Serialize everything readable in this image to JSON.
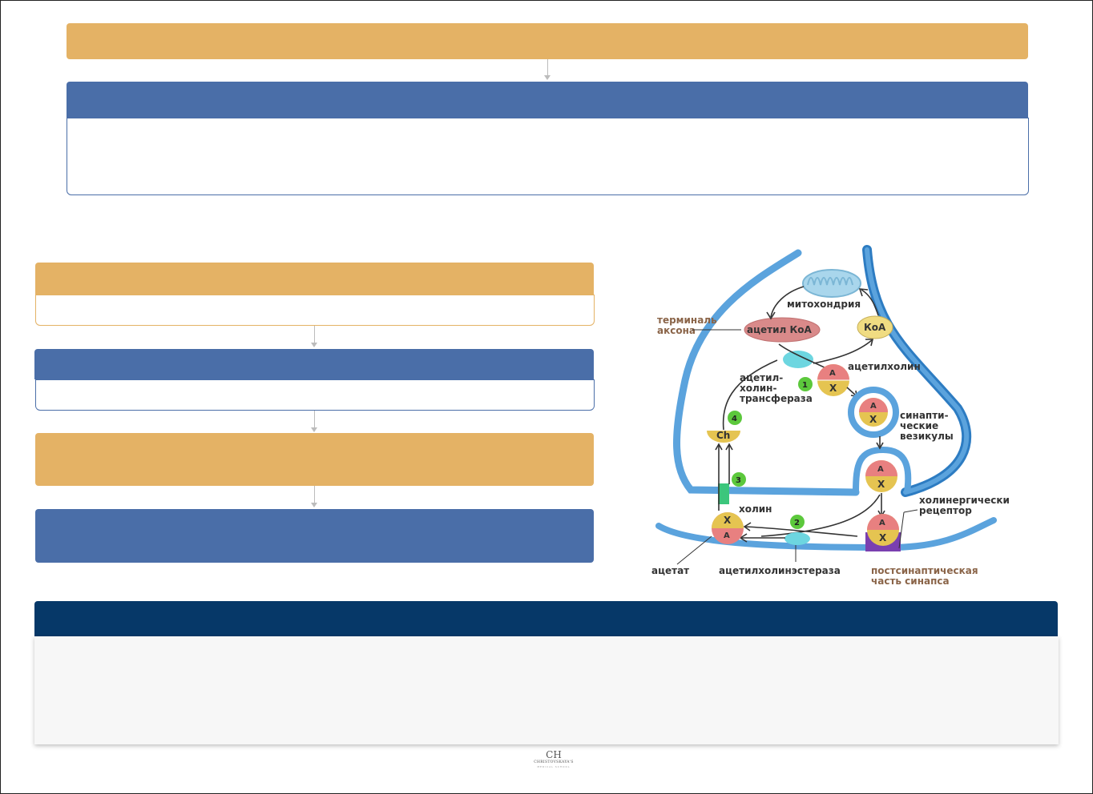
{
  "diagram": {
    "labels": {
      "mitochondria": "митохондрия",
      "axon_terminal_line1": "терминаль",
      "axon_terminal_line2": "аксона",
      "acetyl_coa": "ацетил КоА",
      "coa": "КоА",
      "acetylcholine": "ацетилхолин",
      "acht_line1": "ацетил-",
      "acht_line2": "холин-",
      "acht_line3": "трансфераза",
      "vesicles_line1": "синапти-",
      "vesicles_line2": "ческие",
      "vesicles_line3": "везикулы",
      "choline": "холин",
      "receptor_line1": "холинергически",
      "receptor_line2": "рецептор",
      "acetate": "ацетат",
      "ache": "ацетилхолинэстераза",
      "postsynaptic_line1": "постсинаптическая",
      "postsynaptic_line2": "часть синапса",
      "ch": "Ch",
      "a": "A",
      "x": "X",
      "step1": "1",
      "step2": "2",
      "step3": "3",
      "step4": "4"
    },
    "colors": {
      "membrane": "#5ba3dd",
      "membrane_dark": "#2d7cc2",
      "acetylcholine_top": "#e88080",
      "acetylcholine_bottom": "#e5c451",
      "step_badge": "#5cc83c",
      "enzyme": "#6dd6e0",
      "receptor": "#7a3fb0",
      "acetyl_coa": "#d98a8a",
      "label_brown": "#8a6448"
    }
  },
  "logo": {
    "monogram": "CH",
    "brand": "CHRISTOVSKAYA'S",
    "sub": "MEDICAL SCHOOL"
  }
}
